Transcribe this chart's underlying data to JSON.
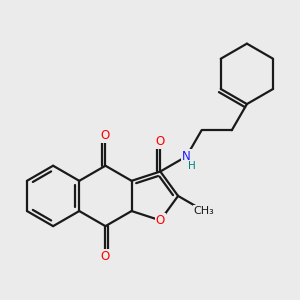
{
  "bg_color": "#ebebeb",
  "bond_color": "#1a1a1a",
  "bond_width": 1.6,
  "atom_colors": {
    "O": "#ff0000",
    "N": "#1a1aff",
    "H": "#008080",
    "C": "#1a1a1a"
  },
  "font_size_atom": 8.5,
  "font_size_H": 7.5,
  "font_size_methyl": 8.0
}
